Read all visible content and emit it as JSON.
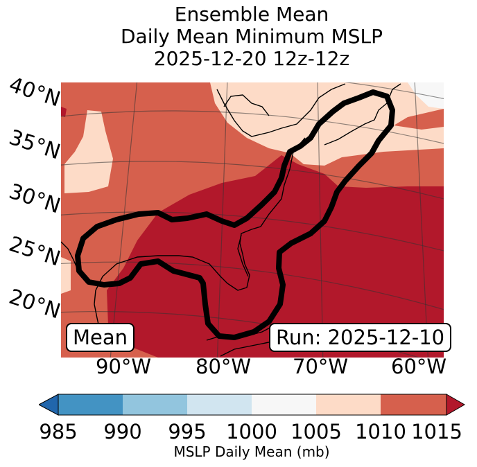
{
  "title": {
    "line1": "Ensemble Mean",
    "line2": "Daily Mean Minimum MSLP",
    "line3": "2025-12-20 12z-12z"
  },
  "map": {
    "lat_labels": [
      "40°N",
      "35°N",
      "30°N",
      "25°N",
      "20°N"
    ],
    "lon_labels": [
      "90°W",
      "80°W",
      "70°W",
      "60°W"
    ],
    "badge_left": "Mean",
    "badge_right": "Run: 2025-12-10"
  },
  "colorbar": {
    "label": "MSLP Daily Mean (mb)",
    "ticks": [
      "985",
      "990",
      "995",
      "1000",
      "1005",
      "1010",
      "1015"
    ],
    "colors": {
      "below": "#2166ac",
      "c985": "#4393c3",
      "c990": "#92c5de",
      "c995": "#d1e5f0",
      "c1000": "#f7f7f7",
      "c1005": "#fddbc7",
      "c1010": "#d6604d",
      "c1015": "#b2182b"
    }
  }
}
